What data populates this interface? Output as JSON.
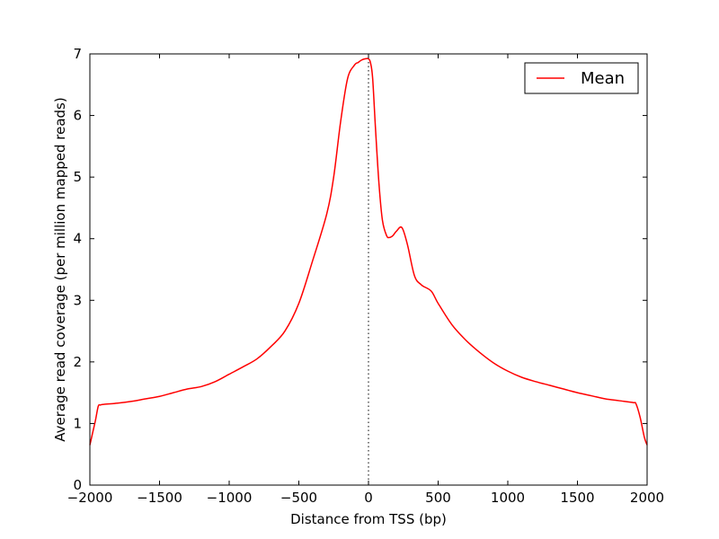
{
  "chart_data": {
    "type": "line",
    "xlabel": "Distance from TSS (bp)",
    "ylabel": "Average read coverage (per million mapped reads)",
    "xlim": [
      -2000,
      2000
    ],
    "ylim": [
      0,
      7
    ],
    "x_ticks": [
      -2000,
      -1500,
      -1000,
      -500,
      0,
      500,
      1000,
      1500,
      2000
    ],
    "x_tick_labels": [
      "−2000",
      "−1500",
      "−1000",
      "−500",
      "0",
      "500",
      "1000",
      "1500",
      "2000"
    ],
    "y_ticks": [
      0,
      1,
      2,
      3,
      4,
      5,
      6,
      7
    ],
    "y_tick_labels": [
      "0",
      "1",
      "2",
      "3",
      "4",
      "5",
      "6",
      "7"
    ],
    "grid": false,
    "legend_position": "top-right",
    "reference_line": {
      "x": 0,
      "style": "dotted",
      "color": "#000000"
    },
    "series": [
      {
        "name": "Mean",
        "color": "#ff0000",
        "x": [
          -2000,
          -1980,
          -1960,
          -1940,
          -1925,
          -1900,
          -1800,
          -1700,
          -1600,
          -1500,
          -1400,
          -1300,
          -1200,
          -1100,
          -1000,
          -900,
          -800,
          -700,
          -600,
          -500,
          -400,
          -300,
          -250,
          -200,
          -150,
          -100,
          -75,
          -50,
          -25,
          0,
          15,
          30,
          50,
          75,
          100,
          130,
          150,
          175,
          200,
          240,
          280,
          330,
          380,
          450,
          500,
          600,
          700,
          800,
          900,
          1000,
          1100,
          1200,
          1300,
          1400,
          1500,
          1600,
          1700,
          1800,
          1900,
          1920,
          1950,
          1980,
          2000
        ],
        "values": [
          0.65,
          0.85,
          1.05,
          1.28,
          1.3,
          1.31,
          1.33,
          1.36,
          1.4,
          1.44,
          1.5,
          1.56,
          1.6,
          1.68,
          1.8,
          1.92,
          2.05,
          2.25,
          2.5,
          2.95,
          3.65,
          4.4,
          5.0,
          5.9,
          6.6,
          6.82,
          6.86,
          6.9,
          6.92,
          6.92,
          6.85,
          6.6,
          5.8,
          4.9,
          4.3,
          4.05,
          4.02,
          4.05,
          4.12,
          4.18,
          3.9,
          3.4,
          3.25,
          3.15,
          2.95,
          2.6,
          2.35,
          2.15,
          1.98,
          1.85,
          1.75,
          1.68,
          1.62,
          1.56,
          1.5,
          1.45,
          1.4,
          1.37,
          1.34,
          1.32,
          1.1,
          0.78,
          0.65
        ]
      }
    ]
  }
}
